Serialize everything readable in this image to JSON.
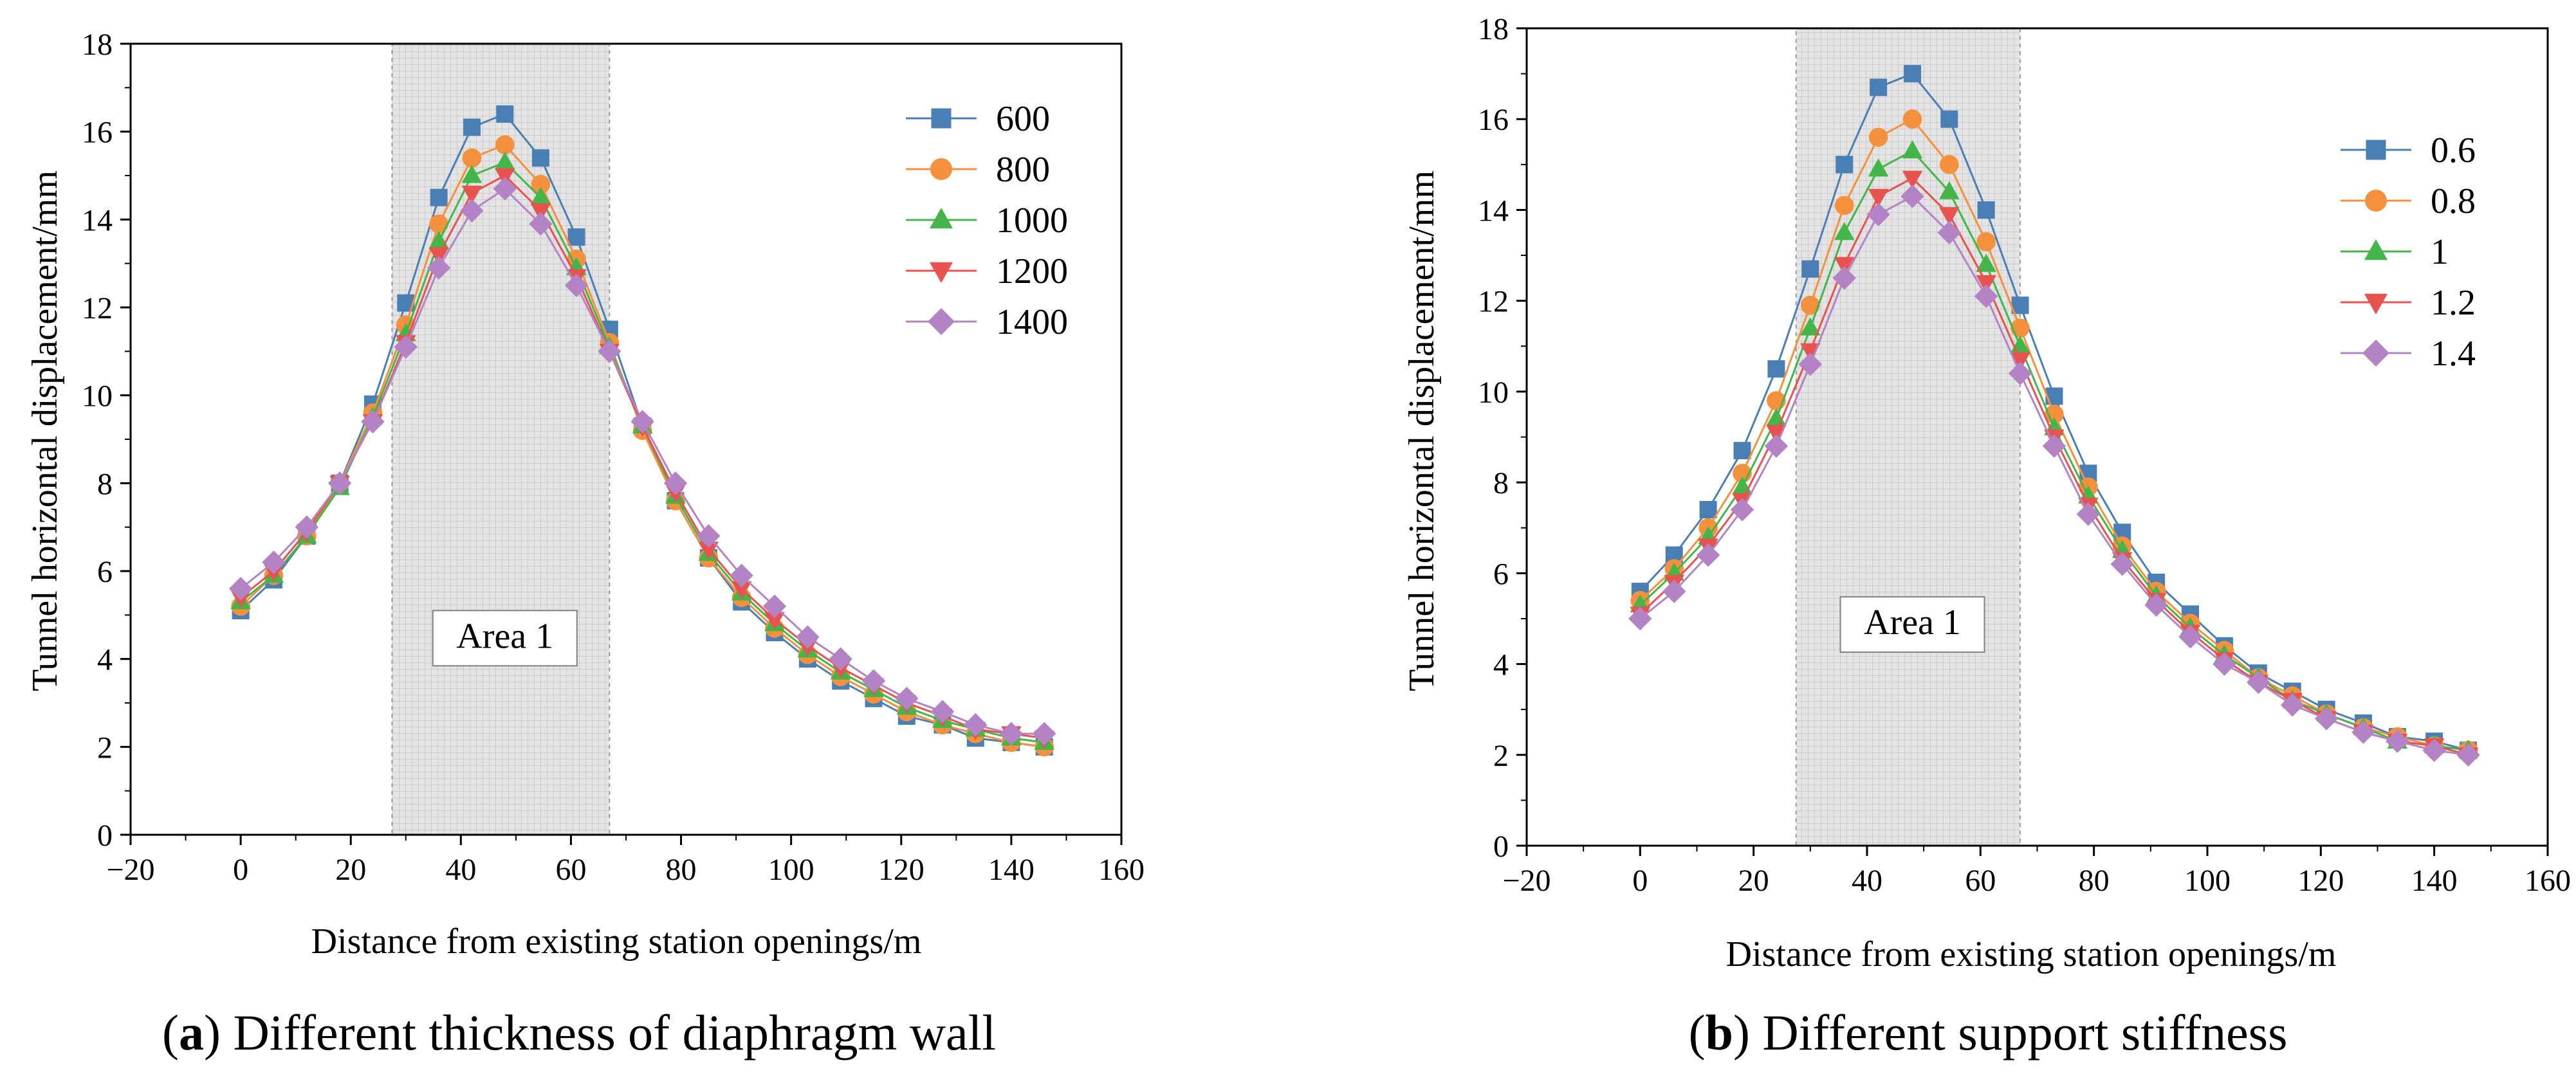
{
  "chart_data": [
    {
      "type": "line",
      "panel_letter": "a",
      "caption_text": ") Different thickness of diaphragm wall",
      "caption_open": "(",
      "xlabel": "Distance from existing station openings/m",
      "ylabel": "Tunnel horizontal displacement/mm",
      "xlim": [
        -20,
        160
      ],
      "ylim": [
        0,
        18
      ],
      "xticks": [
        -20,
        0,
        20,
        40,
        60,
        80,
        100,
        120,
        140,
        160
      ],
      "xtick_labels": [
        "−20",
        "0",
        "20",
        "40",
        "60",
        "80",
        "100",
        "120",
        "140",
        "160"
      ],
      "yticks": [
        0,
        2,
        4,
        6,
        8,
        10,
        12,
        14,
        16,
        18
      ],
      "ytick_labels": [
        "0",
        "2",
        "4",
        "6",
        "8",
        "10",
        "12",
        "14",
        "16",
        "18"
      ],
      "shaded_region": {
        "x_start": 27.5,
        "x_end": 67,
        "label": "Area 1",
        "label_x": 48,
        "label_y": 4.4
      },
      "legend_position": "top-right",
      "x": [
        0,
        6,
        12,
        18,
        24,
        30,
        36,
        42,
        48,
        54.5,
        61,
        67,
        73,
        79,
        85,
        91,
        97,
        103,
        109,
        115,
        121,
        127.5,
        133.5,
        140,
        146
      ],
      "series": [
        {
          "name": "600",
          "color": "#4a7fb5",
          "marker": "square",
          "values": [
            5.1,
            5.8,
            6.8,
            8.0,
            9.8,
            12.1,
            14.5,
            16.1,
            16.4,
            15.4,
            13.6,
            11.5,
            9.3,
            7.6,
            6.3,
            5.3,
            4.6,
            4.0,
            3.5,
            3.1,
            2.7,
            2.5,
            2.2,
            2.1,
            2.0
          ]
        },
        {
          "name": "800",
          "color": "#f5903c",
          "marker": "circle",
          "values": [
            5.2,
            5.9,
            6.8,
            8.0,
            9.6,
            11.6,
            13.9,
            15.4,
            15.7,
            14.8,
            13.1,
            11.2,
            9.2,
            7.6,
            6.3,
            5.4,
            4.7,
            4.1,
            3.6,
            3.2,
            2.8,
            2.5,
            2.3,
            2.1,
            2.0
          ]
        },
        {
          "name": "1000",
          "color": "#44b649",
          "marker": "triangle-up",
          "values": [
            5.3,
            5.9,
            6.8,
            7.9,
            9.5,
            11.4,
            13.5,
            15.0,
            15.3,
            14.5,
            12.9,
            11.1,
            9.3,
            7.7,
            6.4,
            5.5,
            4.8,
            4.2,
            3.7,
            3.3,
            2.9,
            2.6,
            2.4,
            2.2,
            2.1
          ]
        },
        {
          "name": "1200",
          "color": "#e8524f",
          "marker": "triangle-down",
          "values": [
            5.4,
            6.0,
            6.9,
            8.0,
            9.4,
            11.2,
            13.2,
            14.6,
            15.0,
            14.2,
            12.7,
            11.0,
            9.3,
            7.8,
            6.5,
            5.6,
            4.9,
            4.3,
            3.8,
            3.4,
            3.0,
            2.7,
            2.4,
            2.3,
            2.2
          ]
        },
        {
          "name": "1400",
          "color": "#b383c6",
          "marker": "diamond",
          "values": [
            5.6,
            6.2,
            7.0,
            8.0,
            9.4,
            11.1,
            12.9,
            14.2,
            14.7,
            13.9,
            12.5,
            11.0,
            9.4,
            8.0,
            6.8,
            5.9,
            5.2,
            4.5,
            4.0,
            3.5,
            3.1,
            2.8,
            2.5,
            2.3,
            2.3
          ]
        }
      ]
    },
    {
      "type": "line",
      "panel_letter": "b",
      "caption_text": ") Different support stiffness",
      "caption_open": "(",
      "xlabel": "Distance from existing station openings/m",
      "ylabel": "Tunnel horizontal displacement/mm",
      "xlim": [
        -20,
        160
      ],
      "ylim": [
        0,
        18
      ],
      "xticks": [
        -20,
        0,
        20,
        40,
        60,
        80,
        100,
        120,
        140,
        160
      ],
      "xtick_labels": [
        "−20",
        "0",
        "20",
        "40",
        "60",
        "80",
        "100",
        "120",
        "140",
        "160"
      ],
      "yticks": [
        0,
        2,
        4,
        6,
        8,
        10,
        12,
        14,
        16,
        18
      ],
      "ytick_labels": [
        "0",
        "2",
        "4",
        "6",
        "8",
        "10",
        "12",
        "14",
        "16",
        "18"
      ],
      "shaded_region": {
        "x_start": 27.5,
        "x_end": 67,
        "label": "Area 1",
        "label_x": 48,
        "label_y": 4.8
      },
      "legend_position": "top-right",
      "x": [
        0,
        6,
        12,
        18,
        24,
        30,
        36,
        42,
        48,
        54.5,
        61,
        67,
        73,
        79,
        85,
        91,
        97,
        103,
        109,
        115,
        121,
        127.5,
        133.5,
        140,
        146
      ],
      "series": [
        {
          "name": "0.6",
          "color": "#4a7fb5",
          "marker": "square",
          "values": [
            5.6,
            6.4,
            7.4,
            8.7,
            10.5,
            12.7,
            15.0,
            16.7,
            17.0,
            16.0,
            14.0,
            11.9,
            9.9,
            8.2,
            6.9,
            5.8,
            5.1,
            4.4,
            3.8,
            3.4,
            3.0,
            2.7,
            2.4,
            2.3,
            2.1
          ]
        },
        {
          "name": "0.8",
          "color": "#f5903c",
          "marker": "circle",
          "values": [
            5.4,
            6.1,
            7.0,
            8.2,
            9.8,
            11.9,
            14.1,
            15.6,
            16.0,
            15.0,
            13.3,
            11.4,
            9.5,
            7.9,
            6.6,
            5.6,
            4.9,
            4.3,
            3.7,
            3.3,
            2.9,
            2.6,
            2.4,
            2.2,
            2.1
          ]
        },
        {
          "name": "1",
          "color": "#44b649",
          "marker": "triangle-up",
          "values": [
            5.3,
            6.0,
            6.8,
            7.9,
            9.4,
            11.4,
            13.5,
            14.9,
            15.3,
            14.4,
            12.8,
            11.0,
            9.2,
            7.7,
            6.5,
            5.5,
            4.8,
            4.2,
            3.7,
            3.2,
            2.9,
            2.6,
            2.3,
            2.2,
            2.1
          ]
        },
        {
          "name": "1.2",
          "color": "#e8524f",
          "marker": "triangle-down",
          "values": [
            5.1,
            5.8,
            6.6,
            7.6,
            9.1,
            10.9,
            12.8,
            14.3,
            14.7,
            13.9,
            12.4,
            10.7,
            9.0,
            7.5,
            6.3,
            5.4,
            4.7,
            4.1,
            3.6,
            3.2,
            2.8,
            2.5,
            2.3,
            2.2,
            2.0
          ]
        },
        {
          "name": "1.4",
          "color": "#b383c6",
          "marker": "diamond",
          "values": [
            5.0,
            5.6,
            6.4,
            7.4,
            8.8,
            10.6,
            12.5,
            13.9,
            14.3,
            13.5,
            12.1,
            10.4,
            8.8,
            7.3,
            6.2,
            5.3,
            4.6,
            4.0,
            3.6,
            3.1,
            2.8,
            2.5,
            2.3,
            2.1,
            2.0
          ]
        }
      ]
    }
  ]
}
